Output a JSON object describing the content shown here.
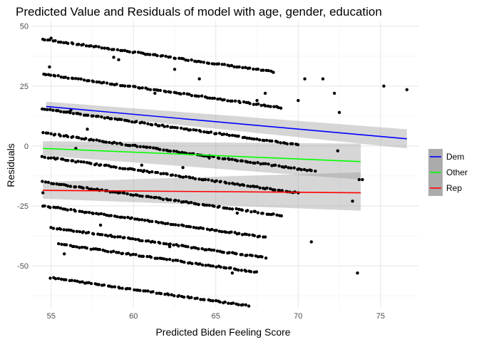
{
  "chart_data": {
    "type": "scatter",
    "title": "Predicted Value and Residuals of model with age, gender, education",
    "xlabel": "Predicted Biden Feeling Score",
    "ylabel": "Residuals",
    "xlim": [
      53.8,
      77.3
    ],
    "ylim": [
      -67.5,
      52
    ],
    "x_ticks": [
      55,
      60,
      65,
      70,
      75
    ],
    "y_ticks": [
      50,
      25,
      0,
      -25,
      -50
    ],
    "grid": true,
    "legend_position": "right",
    "bands": [
      {
        "intercept": 44.5,
        "x_from": 54.5,
        "x_to": 68.5
      },
      {
        "intercept": 30.0,
        "x_from": 54.5,
        "x_to": 69.0
      },
      {
        "intercept": 15.5,
        "x_from": 54.5,
        "x_to": 70.0
      },
      {
        "intercept": 5.5,
        "x_from": 54.5,
        "x_to": 71.0
      },
      {
        "intercept": -4.5,
        "x_from": 54.5,
        "x_to": 70.0
      },
      {
        "intercept": -15.0,
        "x_from": 54.5,
        "x_to": 69.0
      },
      {
        "intercept": -25.0,
        "x_from": 54.5,
        "x_to": 68.0
      },
      {
        "intercept": -34.0,
        "x_from": 55.0,
        "x_to": 68.0
      },
      {
        "intercept": -41.0,
        "x_from": 55.5,
        "x_to": 67.5
      },
      {
        "intercept": -55.0,
        "x_from": 55.0,
        "x_to": 67.0
      }
    ],
    "band_slope": -0.97,
    "extra_points": [
      {
        "x": 55.0,
        "y": 45
      },
      {
        "x": 54.9,
        "y": 33
      },
      {
        "x": 54.5,
        "y": -19.5
      },
      {
        "x": 55.8,
        "y": -45
      },
      {
        "x": 56.5,
        "y": -1
      },
      {
        "x": 56.2,
        "y": 15
      },
      {
        "x": 57.2,
        "y": 7
      },
      {
        "x": 58.0,
        "y": -33
      },
      {
        "x": 58.8,
        "y": 37
      },
      {
        "x": 59.1,
        "y": 36
      },
      {
        "x": 60.5,
        "y": -8
      },
      {
        "x": 61.3,
        "y": 22
      },
      {
        "x": 62.5,
        "y": 32
      },
      {
        "x": 62.2,
        "y": -42
      },
      {
        "x": 63.0,
        "y": -9
      },
      {
        "x": 64.0,
        "y": 28
      },
      {
        "x": 64.6,
        "y": -5
      },
      {
        "x": 66.0,
        "y": -53
      },
      {
        "x": 66.3,
        "y": -28
      },
      {
        "x": 67.5,
        "y": 19
      },
      {
        "x": 68.0,
        "y": 22
      },
      {
        "x": 70.0,
        "y": 19
      },
      {
        "x": 70.4,
        "y": 28
      },
      {
        "x": 70.8,
        "y": -40
      },
      {
        "x": 71.5,
        "y": 28
      },
      {
        "x": 72.2,
        "y": 22
      },
      {
        "x": 72.4,
        "y": -2
      },
      {
        "x": 72.5,
        "y": 14
      },
      {
        "x": 73.3,
        "y": -23
      },
      {
        "x": 73.6,
        "y": -53
      },
      {
        "x": 73.7,
        "y": -14
      },
      {
        "x": 73.9,
        "y": -14
      },
      {
        "x": 75.2,
        "y": 25
      },
      {
        "x": 76.6,
        "y": 23.5
      }
    ],
    "series": [
      {
        "name": "Dem",
        "color": "#0000ff",
        "x": [
          54.7,
          76.6
        ],
        "y": [
          16.5,
          3.0
        ],
        "ci_upper": [
          18.5,
          7.0
        ],
        "ci_lower": [
          14.5,
          -1.0
        ]
      },
      {
        "name": "Other",
        "color": "#00ff00",
        "x": [
          54.5,
          73.8
        ],
        "y": [
          -1.0,
          -6.5
        ],
        "ci_upper": [
          2.0,
          1.0
        ],
        "ci_lower": [
          -4.0,
          -14.0
        ]
      },
      {
        "name": "Rep",
        "color": "#ff0000",
        "x": [
          54.5,
          73.8
        ],
        "y": [
          -18.5,
          -19.5
        ],
        "ci_upper": [
          -15.0,
          -11.0
        ],
        "ci_lower": [
          -22.0,
          -27.0
        ]
      }
    ],
    "point_color": "#000000",
    "ci_fill": "#999999"
  }
}
